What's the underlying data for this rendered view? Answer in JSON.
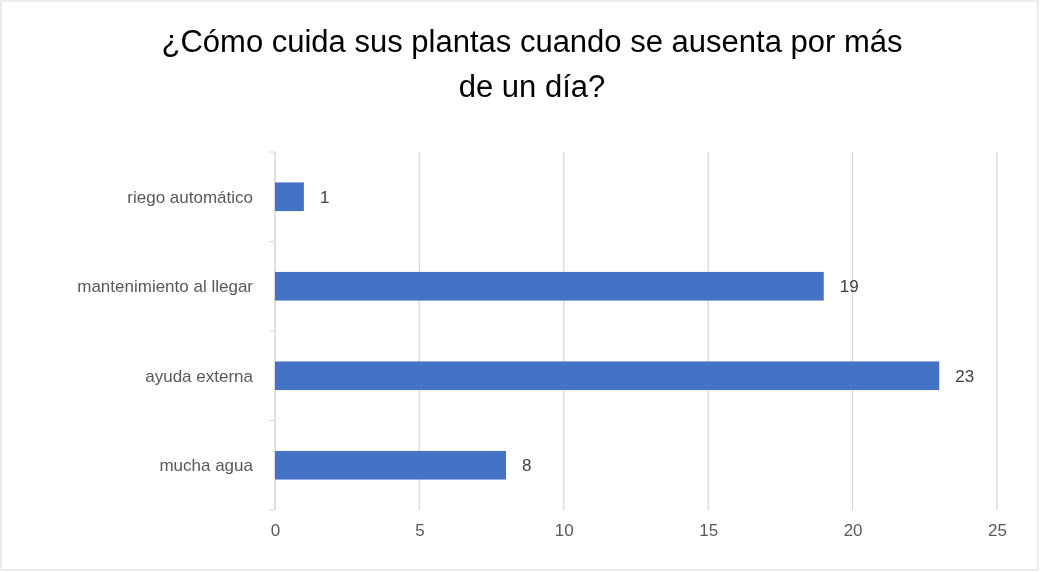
{
  "chart_data": {
    "type": "bar",
    "orientation": "horizontal",
    "title": "¿Cómo cuida sus plantas cuando se ausenta por más de un día?",
    "categories": [
      "riego automático",
      "mantenimiento al llegar",
      "ayuda externa",
      "mucha agua"
    ],
    "values": [
      1,
      19,
      23,
      8
    ],
    "color": "#4472c4",
    "xlim": [
      0,
      25
    ],
    "xticks": [
      0,
      5,
      10,
      15,
      20,
      25
    ],
    "grid": "x",
    "data_labels": true
  }
}
